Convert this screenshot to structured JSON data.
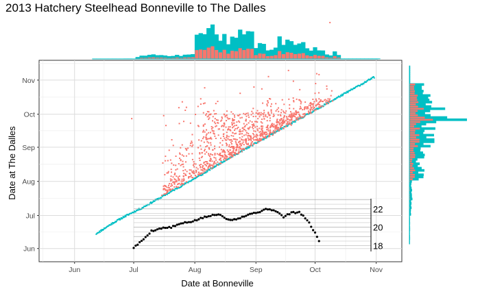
{
  "title": "2013 Hatchery Steelhead Bonneville to The Dalles",
  "colors": {
    "series_late": "#F8766D",
    "series_normal": "#00BFC4",
    "hist_outline": "#00BFC4",
    "inset_points": "#000000"
  },
  "chart_data": [
    {
      "id": "main-scatter",
      "type": "scatter",
      "xlabel": "Date at Bonneville",
      "ylabel": "Date at The Dalles",
      "x_ticks": [
        "Jun",
        "Jul",
        "Aug",
        "Sep",
        "Oct",
        "Nov"
      ],
      "y_ticks": [
        "Jun",
        "Jul",
        "Aug",
        "Sep",
        "Oct",
        "Nov"
      ],
      "xlim": [
        "2013-05-14",
        "2013-11-14"
      ],
      "ylim": [
        "2013-05-20",
        "2013-11-19"
      ],
      "grid": true,
      "legend": "none",
      "series": [
        {
          "color": "#00BFC4",
          "points": [
            [
              "2013-06-12",
              "2013-06-14"
            ],
            [
              "2013-06-14",
              "2013-06-16"
            ],
            [
              "2013-06-20",
              "2013-06-23"
            ],
            [
              "2013-06-27",
              "2013-06-30"
            ],
            [
              "2013-07-05",
              "2013-07-07"
            ],
            [
              "2013-07-15",
              "2013-07-17"
            ],
            [
              "2013-07-25",
              "2013-07-27"
            ],
            [
              "2013-08-05",
              "2013-08-07"
            ],
            [
              "2013-08-15",
              "2013-08-18"
            ],
            [
              "2013-08-25",
              "2013-08-28"
            ],
            [
              "2013-09-05",
              "2013-09-08"
            ],
            [
              "2013-09-15",
              "2013-09-18"
            ],
            [
              "2013-09-25",
              "2013-09-28"
            ],
            [
              "2013-10-05",
              "2013-10-08"
            ],
            [
              "2013-10-15",
              "2013-10-18"
            ],
            [
              "2013-10-25",
              "2013-10-28"
            ],
            [
              "2013-10-31",
              "2013-11-03"
            ]
          ]
        },
        {
          "color": "#F8766D",
          "points": [
            [
              "2013-07-17",
              "2013-07-28"
            ],
            [
              "2013-07-21",
              "2013-08-05"
            ],
            [
              "2013-07-28",
              "2013-08-10"
            ],
            [
              "2013-07-29",
              "2013-08-26"
            ],
            [
              "2013-07-31",
              "2013-09-03"
            ],
            [
              "2013-08-03",
              "2013-09-20"
            ],
            [
              "2013-08-04",
              "2013-10-15"
            ],
            [
              "2013-08-06",
              "2013-10-25"
            ],
            [
              "2013-08-08",
              "2013-09-05"
            ],
            [
              "2013-08-10",
              "2013-09-25"
            ],
            [
              "2013-08-13",
              "2013-09-12"
            ],
            [
              "2013-08-15",
              "2013-09-03"
            ],
            [
              "2013-08-20",
              "2013-09-22"
            ],
            [
              "2013-08-22",
              "2013-09-01"
            ],
            [
              "2013-08-24",
              "2013-10-20"
            ],
            [
              "2013-08-27",
              "2013-09-25"
            ],
            [
              "2013-09-02",
              "2013-09-27"
            ],
            [
              "2013-09-04",
              "2013-10-24"
            ],
            [
              "2013-09-07",
              "2013-10-13"
            ],
            [
              "2013-09-10",
              "2013-10-01"
            ],
            [
              "2013-09-14",
              "2013-10-05"
            ],
            [
              "2013-09-20",
              "2013-10-31"
            ],
            [
              "2013-09-26",
              "2013-10-12"
            ],
            [
              "2013-10-01",
              "2013-10-20"
            ],
            [
              "2013-10-03",
              "2013-11-06"
            ],
            [
              "2013-10-07",
              "2013-10-24"
            ],
            [
              "2013-06-30",
              "2013-09-27"
            ]
          ]
        }
      ]
    },
    {
      "id": "top-histogram",
      "type": "bar",
      "xlabel": "",
      "ylabel": "",
      "stacked": true,
      "categories": [
        "Jul",
        "Aug",
        "Sep",
        "Oct"
      ],
      "series": [
        {
          "color": "#F8766D",
          "values": [
            2,
            12,
            9,
            4
          ]
        },
        {
          "color": "#00BFC4",
          "values": [
            3,
            20,
            16,
            6
          ]
        }
      ]
    },
    {
      "id": "right-histogram",
      "type": "bar",
      "xlabel": "",
      "ylabel": "",
      "orientation": "horizontal",
      "stacked": true,
      "categories": [
        "Jul",
        "Aug",
        "Sep",
        "Oct",
        "Nov"
      ],
      "series": [
        {
          "color": "#F8766D",
          "values": [
            1,
            6,
            12,
            9,
            1
          ]
        },
        {
          "color": "#00BFC4",
          "values": [
            2,
            9,
            17,
            13,
            2
          ]
        }
      ]
    },
    {
      "id": "temperature-inset",
      "type": "line",
      "xlabel": "",
      "ylabel": "",
      "y_ticks": [
        "18",
        "20",
        "22"
      ],
      "ylim": [
        17.6,
        23.1
      ],
      "points": [
        [
          "2013-07-01",
          17.8
        ],
        [
          "2013-07-05",
          18.5
        ],
        [
          "2013-07-10",
          19.6
        ],
        [
          "2013-07-15",
          19.9
        ],
        [
          "2013-07-20",
          20.0
        ],
        [
          "2013-07-25",
          20.4
        ],
        [
          "2013-07-30",
          20.6
        ],
        [
          "2013-08-02",
          20.8
        ],
        [
          "2013-08-06",
          21.1
        ],
        [
          "2013-08-10",
          21.3
        ],
        [
          "2013-08-14",
          21.4
        ],
        [
          "2013-08-18",
          20.8
        ],
        [
          "2013-08-22",
          20.9
        ],
        [
          "2013-08-26",
          21.2
        ],
        [
          "2013-08-30",
          21.5
        ],
        [
          "2013-09-03",
          21.7
        ],
        [
          "2013-09-07",
          22.0
        ],
        [
          "2013-09-11",
          21.8
        ],
        [
          "2013-09-15",
          21.1
        ],
        [
          "2013-09-19",
          21.6
        ],
        [
          "2013-09-23",
          21.6
        ],
        [
          "2013-09-27",
          20.8
        ],
        [
          "2013-10-01",
          19.4
        ],
        [
          "2013-10-03",
          18.5
        ]
      ]
    }
  ]
}
